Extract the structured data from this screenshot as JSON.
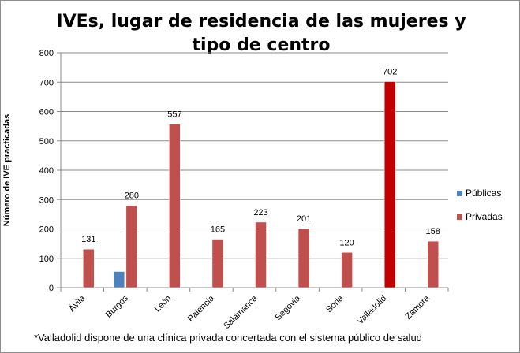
{
  "chart_data": {
    "type": "bar",
    "title": "IVEs, lugar de residencia de las mujeres y tipo de centro",
    "xlabel": "",
    "ylabel": "Número de IVE practicadas",
    "ylim": [
      0,
      800
    ],
    "yticks": [
      0,
      100,
      200,
      300,
      400,
      500,
      600,
      700,
      800
    ],
    "grid": true,
    "legend_position": "right",
    "categories": [
      "Ávila",
      "Burgos",
      "León",
      "Palencia",
      "Salamanca",
      "Segovia",
      "Soria",
      "Valladolid",
      "Zamora"
    ],
    "series": [
      {
        "name": "Públicas",
        "color": "#4f81bd",
        "values": [
          0,
          55,
          0,
          0,
          0,
          0,
          0,
          0,
          0
        ],
        "labels": [
          "",
          "",
          "",
          "",
          "",
          "",
          "",
          "",
          ""
        ]
      },
      {
        "name": "Privadas",
        "color": "#c0504d",
        "values": [
          131,
          280,
          557,
          165,
          223,
          201,
          120,
          702,
          158
        ],
        "labels": [
          "131",
          "280",
          "557",
          "165",
          "223",
          "201",
          "120",
          "702",
          "158"
        ]
      }
    ],
    "highlight": {
      "category": "Valladolid",
      "color": "#c00000"
    },
    "footnote": "*Valladolid dispone de una clínica  privada concertada con el sistema público de salud"
  }
}
